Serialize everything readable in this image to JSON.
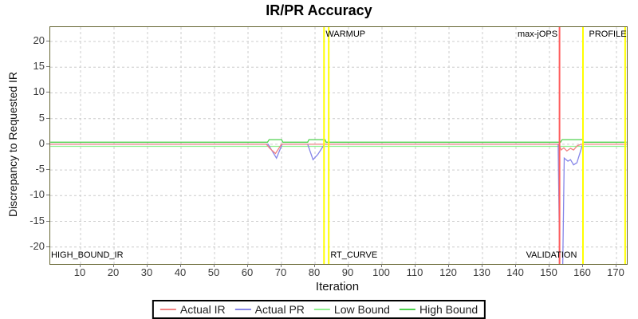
{
  "title": "IR/PR Accuracy",
  "chart_data": {
    "type": "line",
    "title": "IR/PR Accuracy",
    "xlabel": "Iteration",
    "ylabel": "Discrepancy to Requested IR",
    "xlim": [
      0.95,
      173.1
    ],
    "ylim": [
      -23.3,
      22.8
    ],
    "x_ticks": [
      10,
      20,
      30,
      40,
      50,
      60,
      70,
      80,
      90,
      100,
      110,
      120,
      130,
      140,
      150,
      160,
      170
    ],
    "y_ticks": [
      20,
      15,
      10,
      5,
      0,
      -5,
      -10,
      -15,
      -20
    ],
    "grid": true,
    "legend_position": "bottom",
    "series": [
      {
        "name": "Low Bound",
        "color": "#8ef08e",
        "points": [
          [
            1,
            -0.4
          ],
          [
            173,
            -0.4
          ]
        ]
      },
      {
        "name": "High Bound",
        "color": "#4cd24c",
        "points": [
          [
            1,
            0.4
          ],
          [
            65.8,
            0.4
          ],
          [
            66.3,
            0.9
          ],
          [
            70,
            0.9
          ],
          [
            70.4,
            0.4
          ],
          [
            77.8,
            0.4
          ],
          [
            78.2,
            0.9
          ],
          [
            83,
            0.9
          ],
          [
            83.3,
            0.4
          ],
          [
            153.3,
            0.4
          ],
          [
            153.8,
            0.9
          ],
          [
            159.8,
            0.9
          ],
          [
            160.2,
            0.4
          ],
          [
            173,
            0.4
          ]
        ]
      },
      {
        "name": "Actual PR",
        "color": "#8585e8",
        "points": [
          [
            1,
            0
          ],
          [
            66,
            0
          ],
          [
            68.5,
            -2.7
          ],
          [
            70.2,
            0
          ],
          [
            77.8,
            0
          ],
          [
            79.4,
            -3.0
          ],
          [
            80.8,
            -2.0
          ],
          [
            82.8,
            0
          ],
          [
            152.6,
            0
          ],
          [
            153.1,
            -26
          ],
          [
            153.9,
            -26
          ],
          [
            154.4,
            -2.7
          ],
          [
            155.5,
            -3.3
          ],
          [
            156.3,
            -3.0
          ],
          [
            157.2,
            -4.0
          ],
          [
            158.2,
            -3.6
          ],
          [
            159.9,
            0
          ],
          [
            160.3,
            0
          ]
        ]
      },
      {
        "name": "Actual IR",
        "color": "#f28383",
        "points": [
          [
            1,
            0
          ],
          [
            65.5,
            0
          ],
          [
            66.5,
            -0.8
          ],
          [
            68.2,
            -1.8
          ],
          [
            70,
            0
          ],
          [
            152.8,
            0
          ],
          [
            153.5,
            -1.1
          ],
          [
            154.3,
            -0.7
          ],
          [
            155.2,
            -1.3
          ],
          [
            156.3,
            -0.8
          ],
          [
            157.2,
            -1.1
          ],
          [
            158.3,
            -0.3
          ],
          [
            159.5,
            0
          ],
          [
            173,
            0
          ]
        ]
      }
    ],
    "legend_order": [
      "Actual IR",
      "Actual PR",
      "Low Bound",
      "High Bound"
    ],
    "vlines": [
      {
        "x": 82.7,
        "color": "#ffff00"
      },
      {
        "x": 84.1,
        "color": "#ffff00"
      },
      {
        "x": 153.0,
        "color": "#ff5e5e"
      },
      {
        "x": 160.0,
        "color": "#ffff00"
      },
      {
        "x": 172.6,
        "color": "#ffff00"
      }
    ],
    "annotations": [
      {
        "text": "WARMUP",
        "x": 83.2,
        "v": "top",
        "align": "left"
      },
      {
        "text": "max-jOPS",
        "x": 152.4,
        "v": "top",
        "align": "right"
      },
      {
        "text": "PROFILE",
        "x": 173.0,
        "v": "top",
        "align": "right"
      },
      {
        "text": "HIGH_BOUND_IR",
        "x": 1.2,
        "v": "bottom",
        "align": "left"
      },
      {
        "text": "RT_CURVE",
        "x": 84.6,
        "v": "bottom",
        "align": "left"
      },
      {
        "text": "VALIDATION",
        "x": 158.2,
        "v": "bottom",
        "align": "right"
      }
    ]
  }
}
